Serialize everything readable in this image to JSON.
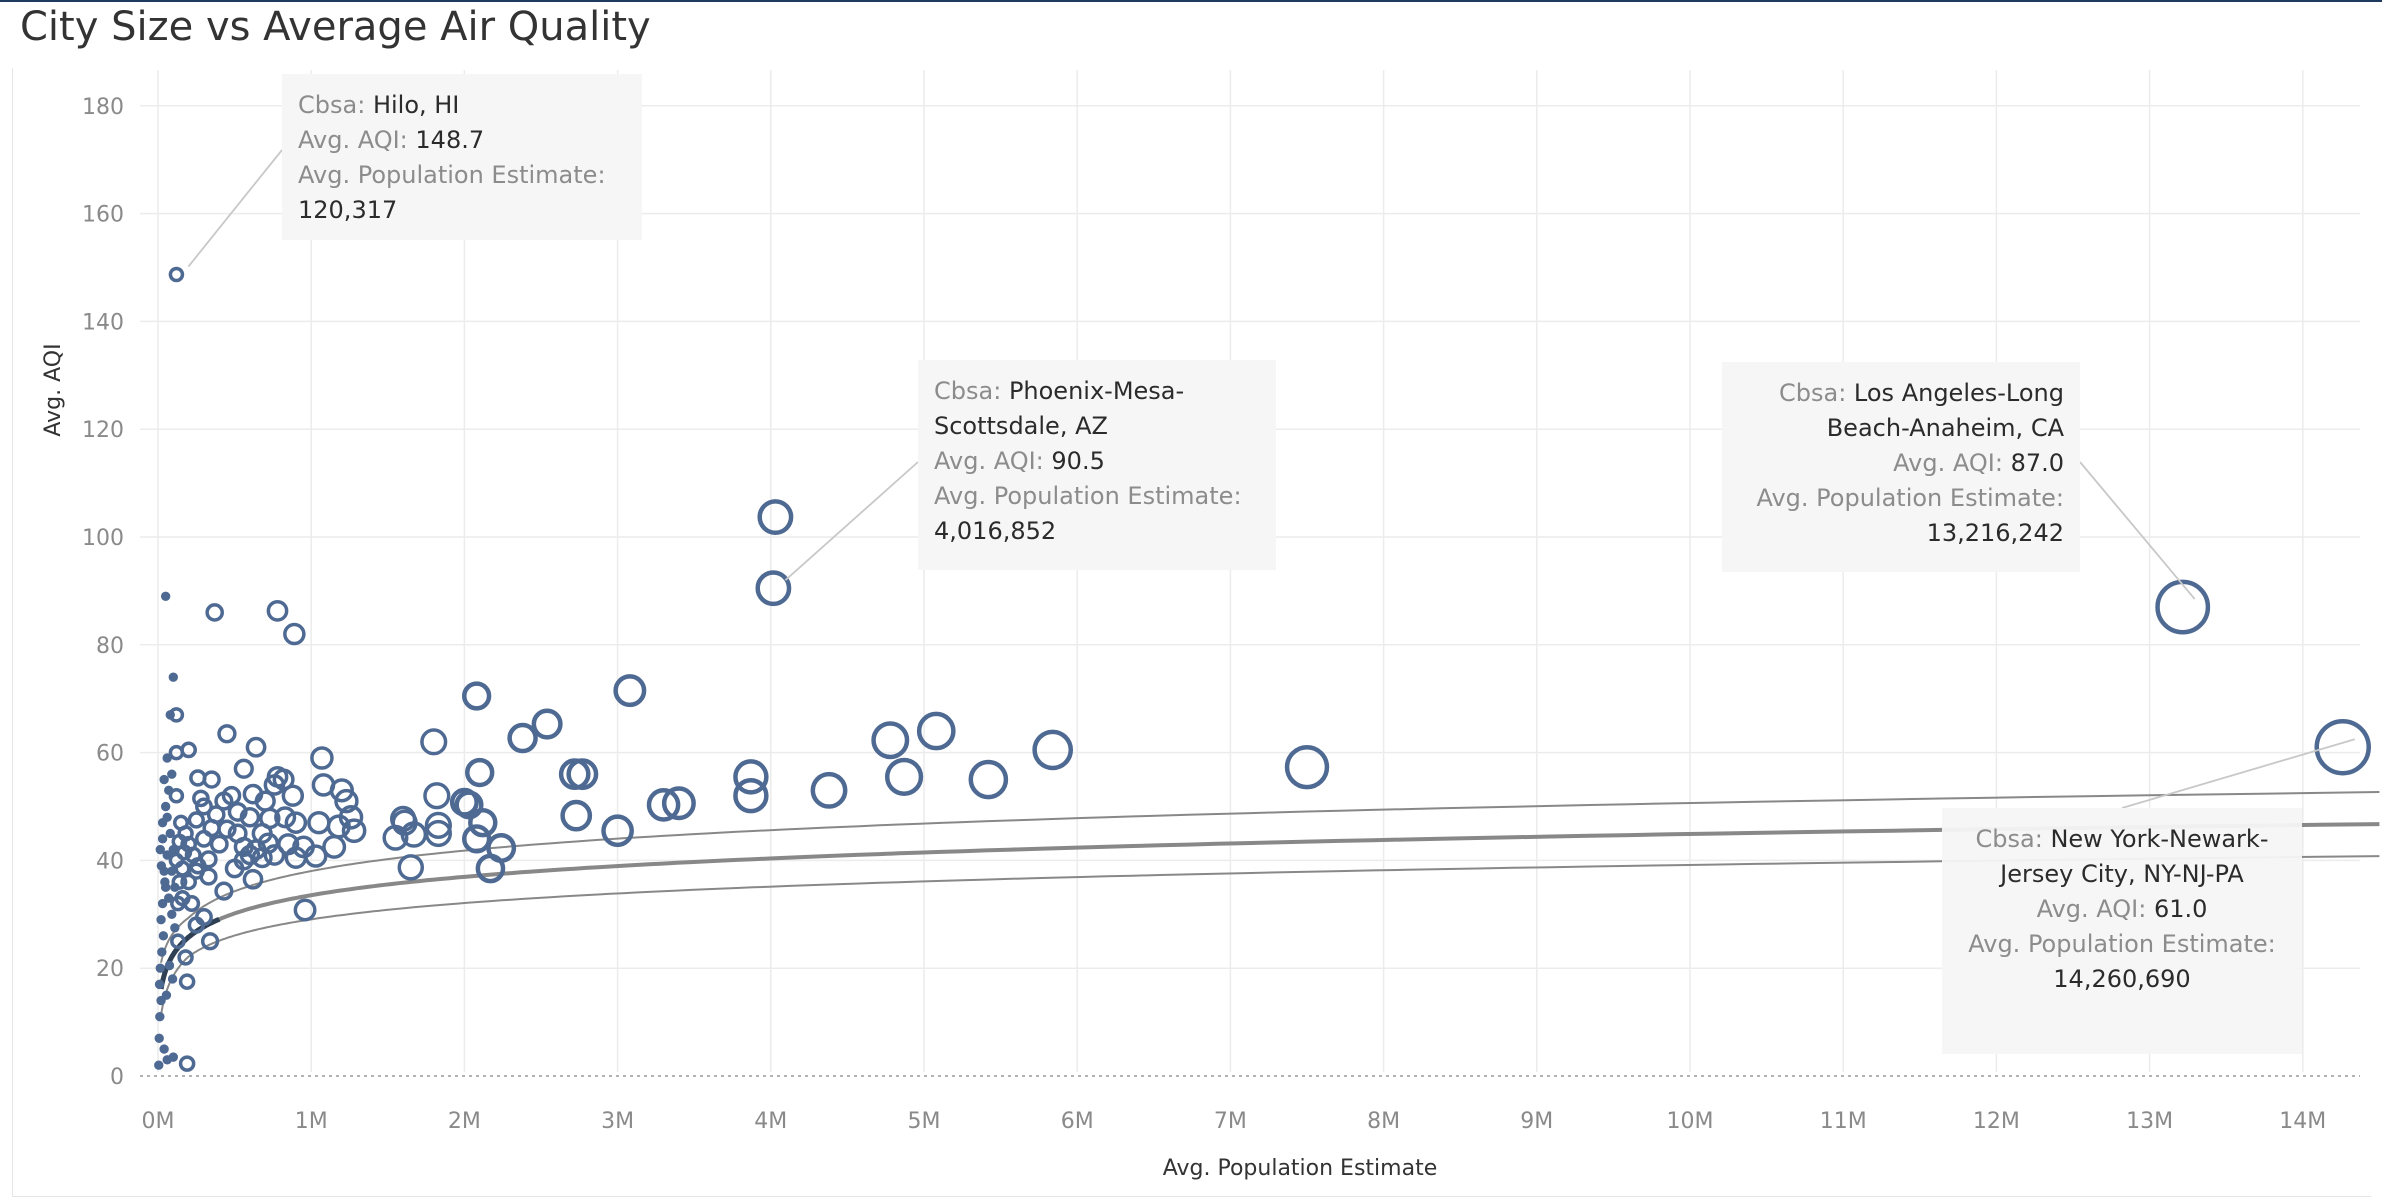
{
  "chart_data": {
    "type": "scatter",
    "title": "City Size vs Average Air Quality",
    "xlabel": "Avg. Population Estimate",
    "ylabel": "Avg. AQI",
    "xlim": [
      0,
      14500000
    ],
    "ylim": [
      0,
      185
    ],
    "xticks": [
      {
        "v": 0,
        "label": "0M"
      },
      {
        "v": 1000000,
        "label": "1M"
      },
      {
        "v": 2000000,
        "label": "2M"
      },
      {
        "v": 3000000,
        "label": "3M"
      },
      {
        "v": 4000000,
        "label": "4M"
      },
      {
        "v": 5000000,
        "label": "5M"
      },
      {
        "v": 6000000,
        "label": "6M"
      },
      {
        "v": 7000000,
        "label": "7M"
      },
      {
        "v": 8000000,
        "label": "8M"
      },
      {
        "v": 9000000,
        "label": "9M"
      },
      {
        "v": 10000000,
        "label": "10M"
      },
      {
        "v": 11000000,
        "label": "11M"
      },
      {
        "v": 12000000,
        "label": "12M"
      },
      {
        "v": 13000000,
        "label": "13M"
      },
      {
        "v": 14000000,
        "label": "14M"
      }
    ],
    "yticks": [
      {
        "v": 0,
        "label": "0"
      },
      {
        "v": 20,
        "label": "20"
      },
      {
        "v": 40,
        "label": "40"
      },
      {
        "v": 60,
        "label": "60"
      },
      {
        "v": 80,
        "label": "80"
      },
      {
        "v": 100,
        "label": "100"
      },
      {
        "v": 120,
        "label": "120"
      },
      {
        "v": 140,
        "label": "140"
      },
      {
        "v": 160,
        "label": "160"
      },
      {
        "v": 180,
        "label": "180"
      }
    ],
    "colors": {
      "point": "#4e6a93",
      "trend": "#888888",
      "trend_dark": "#2f3f54",
      "grid": "#ececec"
    },
    "trend": {
      "model": "logarithmic",
      "a": 10.7,
      "b": 4.95,
      "band": 3.6
    },
    "points": [
      [
        120317,
        148.7
      ],
      [
        4016852,
        90.5
      ],
      [
        13216242,
        87.0
      ],
      [
        14260690,
        61.0
      ],
      [
        4030000,
        103.7
      ],
      [
        3080000,
        71.5
      ],
      [
        2080000,
        70.5
      ],
      [
        2540000,
        65.3
      ],
      [
        2380000,
        62.7
      ],
      [
        1800000,
        62.0
      ],
      [
        2100000,
        56.3
      ],
      [
        2720000,
        56.0
      ],
      [
        2770000,
        56.0
      ],
      [
        2000000,
        50.8
      ],
      [
        2030000,
        50.3
      ],
      [
        2730000,
        48.3
      ],
      [
        3000000,
        45.5
      ],
      [
        3300000,
        50.3
      ],
      [
        3400000,
        50.6
      ],
      [
        3870000,
        55.5
      ],
      [
        3870000,
        52.0
      ],
      [
        4380000,
        53.0
      ],
      [
        4780000,
        62.3
      ],
      [
        4870000,
        55.5
      ],
      [
        5080000,
        64.0
      ],
      [
        5420000,
        55.0
      ],
      [
        5840000,
        60.5
      ],
      [
        7500000,
        57.3
      ],
      [
        1820000,
        52.0
      ],
      [
        1830000,
        46.5
      ],
      [
        1830000,
        45.0
      ],
      [
        2120000,
        47.0
      ],
      [
        2080000,
        44.0
      ],
      [
        1670000,
        44.8
      ],
      [
        1550000,
        44.2
      ],
      [
        1600000,
        47.7
      ],
      [
        1610000,
        47.0
      ],
      [
        1650000,
        38.7
      ],
      [
        2170000,
        38.5
      ],
      [
        2240000,
        42.3
      ],
      [
        370000,
        86.0
      ],
      [
        780000,
        86.3
      ],
      [
        890000,
        82.0
      ],
      [
        50000,
        89.0
      ],
      [
        960000,
        30.8
      ],
      [
        1070000,
        59.0
      ],
      [
        1080000,
        54.0
      ],
      [
        640000,
        61.0
      ],
      [
        450000,
        63.5
      ],
      [
        1200000,
        53.0
      ],
      [
        1260000,
        48.0
      ],
      [
        1230000,
        51.0
      ],
      [
        1180000,
        46.3
      ],
      [
        1280000,
        45.5
      ],
      [
        1030000,
        40.8
      ],
      [
        1150000,
        42.5
      ],
      [
        880000,
        52.0
      ],
      [
        780000,
        55.5
      ],
      [
        820000,
        55.0
      ],
      [
        760000,
        54.0
      ],
      [
        730000,
        47.8
      ],
      [
        830000,
        48.0
      ],
      [
        900000,
        47.0
      ],
      [
        680000,
        45.0
      ],
      [
        640000,
        42.0
      ],
      [
        620000,
        36.5
      ],
      [
        560000,
        40.0
      ],
      [
        500000,
        38.5
      ],
      [
        430000,
        34.3
      ],
      [
        330000,
        37.0
      ],
      [
        250000,
        38.0
      ],
      [
        100000,
        74.0
      ],
      [
        80000,
        67.0
      ],
      [
        120000,
        67.0
      ],
      [
        120000,
        60.0
      ],
      [
        200000,
        60.5
      ],
      [
        260000,
        55.3
      ],
      [
        350000,
        55.0
      ],
      [
        300000,
        50.0
      ],
      [
        480000,
        52.0
      ],
      [
        560000,
        57.0
      ],
      [
        40000,
        55.0
      ],
      [
        60000,
        48.0
      ],
      [
        180000,
        22.0
      ],
      [
        190000,
        17.5
      ],
      [
        220000,
        32.0
      ],
      [
        250000,
        28.0
      ],
      [
        300000,
        29.5
      ],
      [
        340000,
        25.0
      ],
      [
        150000,
        47.0
      ],
      [
        180000,
        45.0
      ],
      [
        200000,
        43.0
      ],
      [
        230000,
        41.0
      ],
      [
        260000,
        39.0
      ],
      [
        160000,
        38.5
      ],
      [
        140000,
        36.0
      ],
      [
        300000,
        44.0
      ],
      [
        400000,
        43.0
      ],
      [
        450000,
        45.8
      ],
      [
        380000,
        48.5
      ],
      [
        330000,
        40.2
      ],
      [
        520000,
        45.0
      ],
      [
        560000,
        42.5
      ],
      [
        600000,
        41.0
      ],
      [
        680000,
        40.5
      ],
      [
        720000,
        43.2
      ],
      [
        760000,
        41.0
      ],
      [
        850000,
        43.0
      ],
      [
        900000,
        40.5
      ],
      [
        950000,
        42.5
      ],
      [
        1050000,
        47.0
      ],
      [
        430000,
        51.0
      ],
      [
        620000,
        52.3
      ],
      [
        700000,
        51.0
      ],
      [
        600000,
        48.0
      ],
      [
        520000,
        49.0
      ],
      [
        350000,
        46.0
      ],
      [
        250000,
        47.5
      ],
      [
        280000,
        51.5
      ],
      [
        120000,
        52.0
      ],
      [
        60000,
        41.0
      ],
      [
        40000,
        38.0
      ],
      [
        50000,
        35.0
      ],
      [
        30000,
        32.0
      ],
      [
        20000,
        29.0
      ],
      [
        35000,
        26.0
      ],
      [
        25000,
        23.0
      ],
      [
        15000,
        20.0
      ],
      [
        10000,
        17.0
      ],
      [
        20000,
        14.0
      ],
      [
        12000,
        11.0
      ],
      [
        8000,
        7.0
      ],
      [
        40000,
        5.0
      ],
      [
        60000,
        3.0
      ],
      [
        100000,
        3.5
      ],
      [
        190000,
        2.3
      ],
      [
        5000,
        2.0
      ],
      [
        30000,
        44.0
      ],
      [
        15000,
        42.0
      ],
      [
        22000,
        39.0
      ],
      [
        45000,
        36.0
      ],
      [
        70000,
        33.0
      ],
      [
        90000,
        30.0
      ],
      [
        110000,
        27.5
      ],
      [
        130000,
        25.0
      ],
      [
        75000,
        20.5
      ],
      [
        95000,
        18.0
      ],
      [
        55000,
        15.0
      ],
      [
        80000,
        45.0
      ],
      [
        100000,
        42.0
      ],
      [
        120000,
        40.0
      ],
      [
        140000,
        43.5
      ],
      [
        170000,
        41.5
      ],
      [
        90000,
        38.0
      ],
      [
        110000,
        35.0
      ],
      [
        130000,
        32.0
      ],
      [
        160000,
        33.0
      ],
      [
        200000,
        36.0
      ],
      [
        50000,
        50.0
      ],
      [
        70000,
        53.0
      ],
      [
        90000,
        56.0
      ],
      [
        60000,
        59.0
      ],
      [
        30000,
        47.0
      ]
    ],
    "annotations": [
      {
        "cbsa": "Hilo, HI",
        "aqi": "148.7",
        "pop": "120,317"
      },
      {
        "cbsa": "Phoenix-Mesa-Scottsdale, AZ",
        "aqi": "90.5",
        "pop": "4,016,852"
      },
      {
        "cbsa": "Los Angeles-Long Beach-Anaheim, CA",
        "aqi": "87.0",
        "pop": "13,216,242"
      },
      {
        "cbsa": "New York-Newark-Jersey City, NY-NJ-PA",
        "aqi": "61.0",
        "pop": "14,260,690"
      }
    ]
  },
  "callout_labels": {
    "cbsa": "Cbsa:",
    "aqi": "Avg. AQI:",
    "pop": "Avg. Population Estimate:"
  }
}
